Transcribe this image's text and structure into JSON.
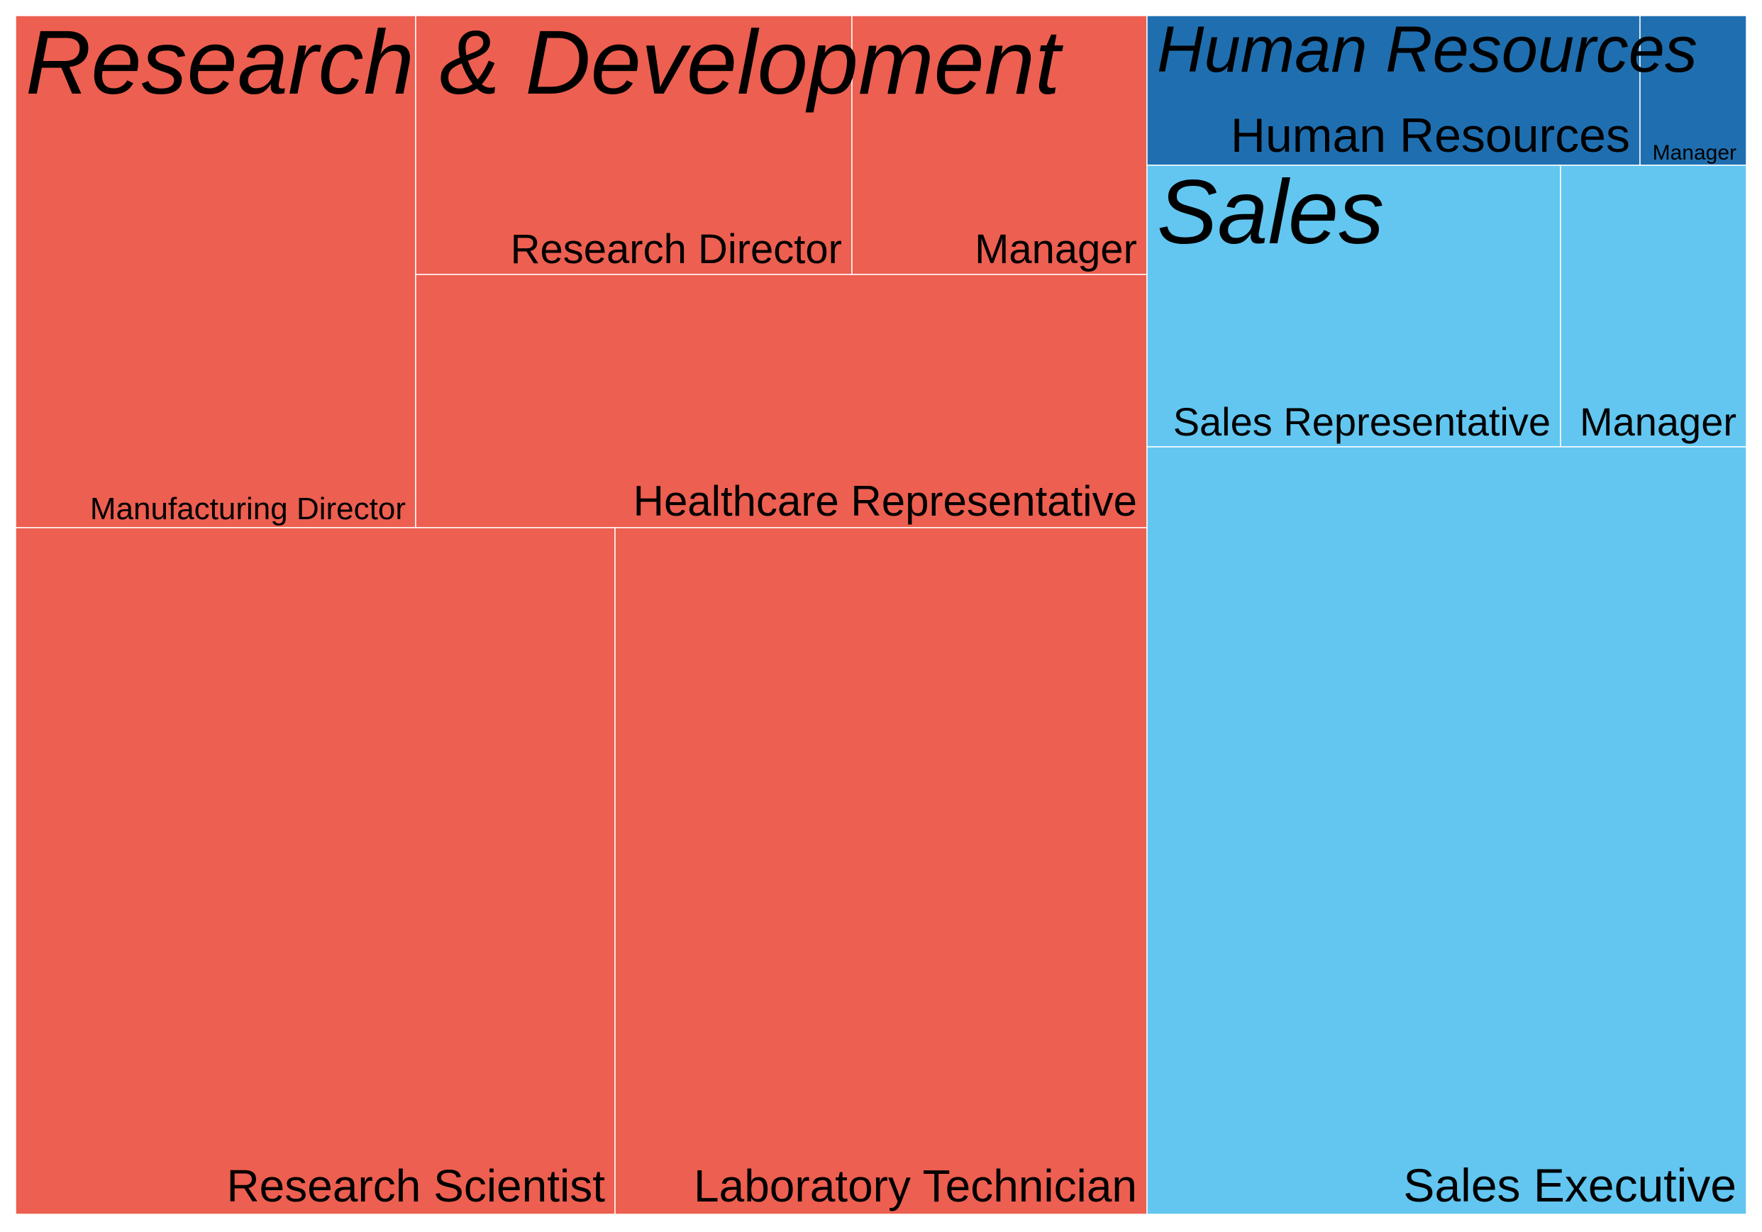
{
  "chart_data": {
    "type": "treemap",
    "groups": [
      {
        "name": "Research & Development",
        "color": "#ED5F50",
        "children": [
          {
            "name": "Manufacturing Director",
            "value": 145
          },
          {
            "name": "Research Director",
            "value": 80
          },
          {
            "name": "Manager",
            "value": 54
          },
          {
            "name": "Healthcare Representative",
            "value": 131
          },
          {
            "name": "Research Scientist",
            "value": 292
          },
          {
            "name": "Laboratory Technician",
            "value": 259
          }
        ]
      },
      {
        "name": "Human Resources",
        "color": "#1F6FB0",
        "children": [
          {
            "name": "Human Resources",
            "value": 52
          },
          {
            "name": "Manager",
            "value": 11
          }
        ]
      },
      {
        "name": "Sales",
        "color": "#62C6F0",
        "children": [
          {
            "name": "Sales Representative",
            "value": 83
          },
          {
            "name": "Manager",
            "value": 37
          },
          {
            "name": "Sales Executive",
            "value": 326
          }
        ]
      }
    ]
  }
}
